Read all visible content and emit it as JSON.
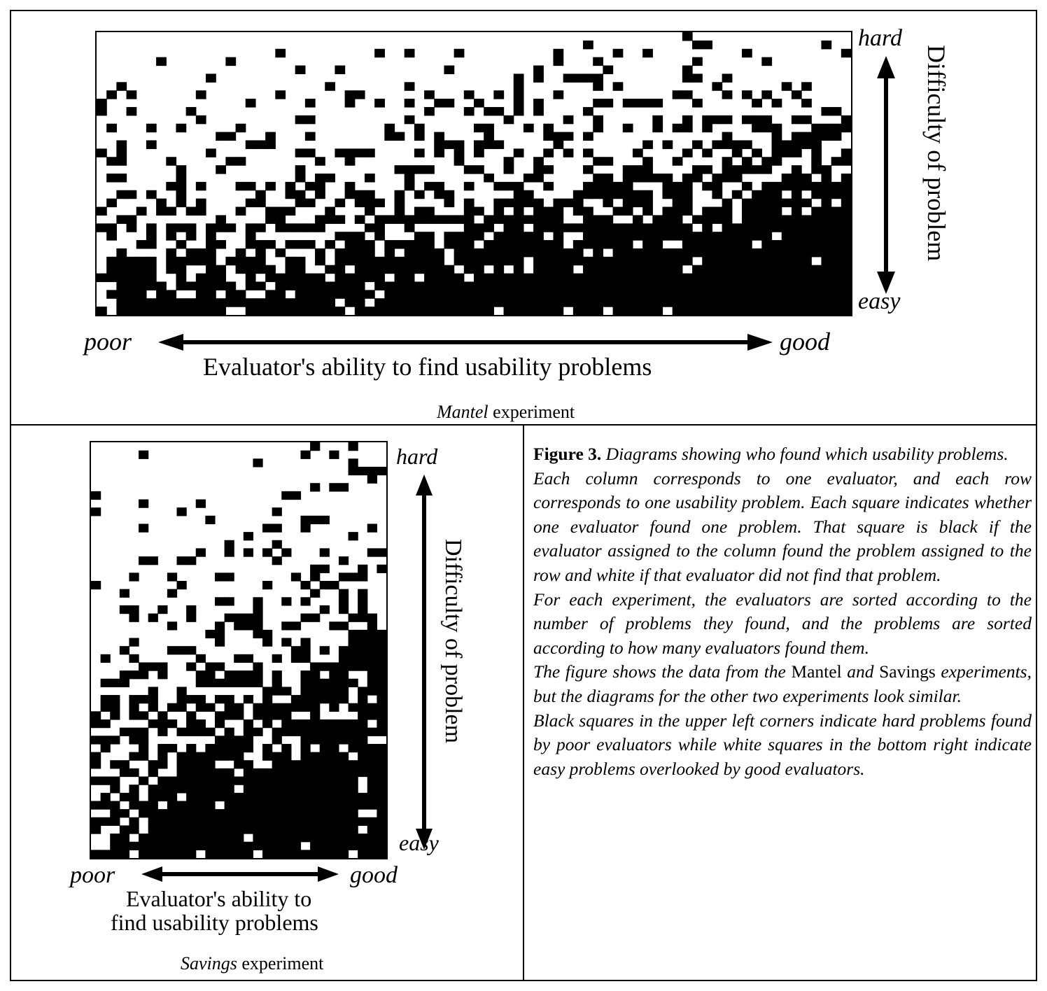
{
  "figure": {
    "top_panel": {
      "label_hard": "hard",
      "label_easy": "easy",
      "label_poor": "poor",
      "label_good": "good",
      "y_axis_title": "Difficulty of problem",
      "x_axis_title": "Evaluator's ability to find usability problems",
      "experiment_name": "Mantel",
      "experiment_suffix": " experiment"
    },
    "bottom_panel": {
      "label_hard": "hard",
      "label_easy": "easy",
      "label_poor": "poor",
      "label_good": "good",
      "y_axis_title": "Difficulty of problem",
      "x_axis_title_line1": "Evaluator's ability to",
      "x_axis_title_line2": "find usability problems",
      "experiment_name": "Savings",
      "experiment_suffix": " experiment"
    },
    "caption": {
      "fig_label": "Figure 3.",
      "fig_title": " Diagrams showing who found which usability problems.",
      "para1": "Each column corresponds to one evaluator, and each row corresponds to one usability problem. Each square indicates whether one evaluator found one problem. That square is black if the evaluator assigned to the column found the problem assigned to the row and white if that evaluator did not find that problem.",
      "para2": "For each experiment, the evaluators are sorted according to the number of problems they found, and the problems are sorted according to how many evaluators found them.",
      "para3_a": "The figure shows the data from the ",
      "para3_b": "Mantel",
      "para3_c": " and ",
      "para3_d": "Savings",
      "para3_e": " experiments, but the diagrams for the other two experiments look similar.",
      "para4": "Black squares in the upper left corners indicate hard problems found by poor evaluators while white squares in the bottom right indicate easy problems overlooked by good evaluators."
    }
  }
}
